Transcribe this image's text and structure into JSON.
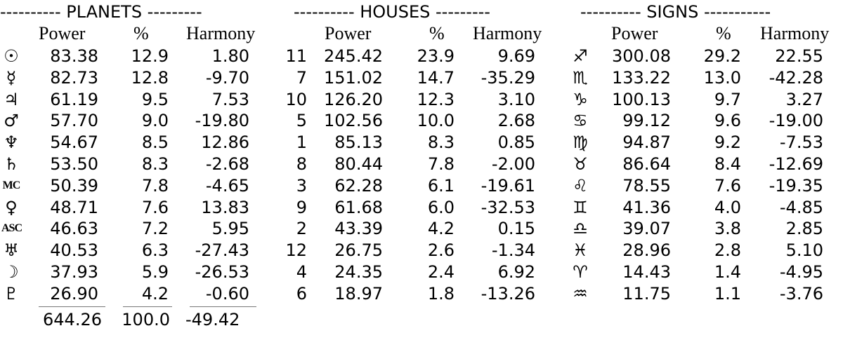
{
  "planets": {
    "title": "---------- PLANETS ---------",
    "headers": {
      "power": "Power",
      "percent": "%",
      "harmony": "Harmony"
    },
    "rows": [
      {
        "glyph": "☉",
        "power": "83.38",
        "percent": "12.9",
        "harmony": "1.80"
      },
      {
        "glyph": "☿",
        "power": "82.73",
        "percent": "12.8",
        "harmony": "-9.70"
      },
      {
        "glyph": "♃",
        "power": "61.19",
        "percent": "9.5",
        "harmony": "7.53"
      },
      {
        "glyph": "♂",
        "power": "57.70",
        "percent": "9.0",
        "harmony": "-19.80"
      },
      {
        "glyph": "♆",
        "power": "54.67",
        "percent": "8.5",
        "harmony": "12.86"
      },
      {
        "glyph": "♄",
        "power": "53.50",
        "percent": "8.3",
        "harmony": "-2.68"
      },
      {
        "glyph": "MC",
        "power": "50.39",
        "percent": "7.8",
        "harmony": "-4.65"
      },
      {
        "glyph": "♀",
        "power": "48.71",
        "percent": "7.6",
        "harmony": "13.83"
      },
      {
        "glyph": "ASC",
        "power": "46.63",
        "percent": "7.2",
        "harmony": "5.95"
      },
      {
        "glyph": "♅",
        "power": "40.53",
        "percent": "6.3",
        "harmony": "-27.43"
      },
      {
        "glyph": "☽",
        "power": "37.93",
        "percent": "5.9",
        "harmony": "-26.53"
      },
      {
        "glyph": "♇",
        "power": "26.90",
        "percent": "4.2",
        "harmony": "-0.60"
      }
    ],
    "totals": {
      "power": "644.26",
      "percent": "100.0",
      "harmony": "-49.42"
    }
  },
  "houses": {
    "title": "---------- HOUSES ---------",
    "headers": {
      "power": "Power",
      "percent": "%",
      "harmony": "Harmony"
    },
    "rows": [
      {
        "house": "11",
        "power": "245.42",
        "percent": "23.9",
        "harmony": "9.69"
      },
      {
        "house": "7",
        "power": "151.02",
        "percent": "14.7",
        "harmony": "-35.29"
      },
      {
        "house": "10",
        "power": "126.20",
        "percent": "12.3",
        "harmony": "3.10"
      },
      {
        "house": "5",
        "power": "102.56",
        "percent": "10.0",
        "harmony": "2.68"
      },
      {
        "house": "1",
        "power": "85.13",
        "percent": "8.3",
        "harmony": "0.85"
      },
      {
        "house": "8",
        "power": "80.44",
        "percent": "7.8",
        "harmony": "-2.00"
      },
      {
        "house": "3",
        "power": "62.28",
        "percent": "6.1",
        "harmony": "-19.61"
      },
      {
        "house": "9",
        "power": "61.68",
        "percent": "6.0",
        "harmony": "-32.53"
      },
      {
        "house": "2",
        "power": "43.39",
        "percent": "4.2",
        "harmony": "0.15"
      },
      {
        "house": "12",
        "power": "26.75",
        "percent": "2.6",
        "harmony": "-1.34"
      },
      {
        "house": "4",
        "power": "24.35",
        "percent": "2.4",
        "harmony": "6.92"
      },
      {
        "house": "6",
        "power": "18.97",
        "percent": "1.8",
        "harmony": "-13.26"
      }
    ]
  },
  "signs": {
    "title": "---------- SIGNS -----------",
    "headers": {
      "power": "Power",
      "percent": "%",
      "harmony": "Harmony"
    },
    "rows": [
      {
        "glyph": "♐",
        "power": "300.08",
        "percent": "29.2",
        "harmony": "22.55"
      },
      {
        "glyph": "♏",
        "power": "133.22",
        "percent": "13.0",
        "harmony": "-42.28"
      },
      {
        "glyph": "♑",
        "power": "100.13",
        "percent": "9.7",
        "harmony": "3.27"
      },
      {
        "glyph": "♋",
        "power": "99.12",
        "percent": "9.6",
        "harmony": "-19.00"
      },
      {
        "glyph": "♍",
        "power": "94.87",
        "percent": "9.2",
        "harmony": "-7.53"
      },
      {
        "glyph": "♉",
        "power": "86.64",
        "percent": "8.4",
        "harmony": "-12.69"
      },
      {
        "glyph": "♌",
        "power": "78.55",
        "percent": "7.6",
        "harmony": "-19.35"
      },
      {
        "glyph": "♊",
        "power": "41.36",
        "percent": "4.0",
        "harmony": "-4.85"
      },
      {
        "glyph": "♎",
        "power": "39.07",
        "percent": "3.8",
        "harmony": "2.85"
      },
      {
        "glyph": "♓",
        "power": "28.96",
        "percent": "2.8",
        "harmony": "5.10"
      },
      {
        "glyph": "♈",
        "power": "14.43",
        "percent": "1.4",
        "harmony": "-4.95"
      },
      {
        "glyph": "♒",
        "power": "11.75",
        "percent": "1.1",
        "harmony": "-3.76"
      }
    ]
  }
}
